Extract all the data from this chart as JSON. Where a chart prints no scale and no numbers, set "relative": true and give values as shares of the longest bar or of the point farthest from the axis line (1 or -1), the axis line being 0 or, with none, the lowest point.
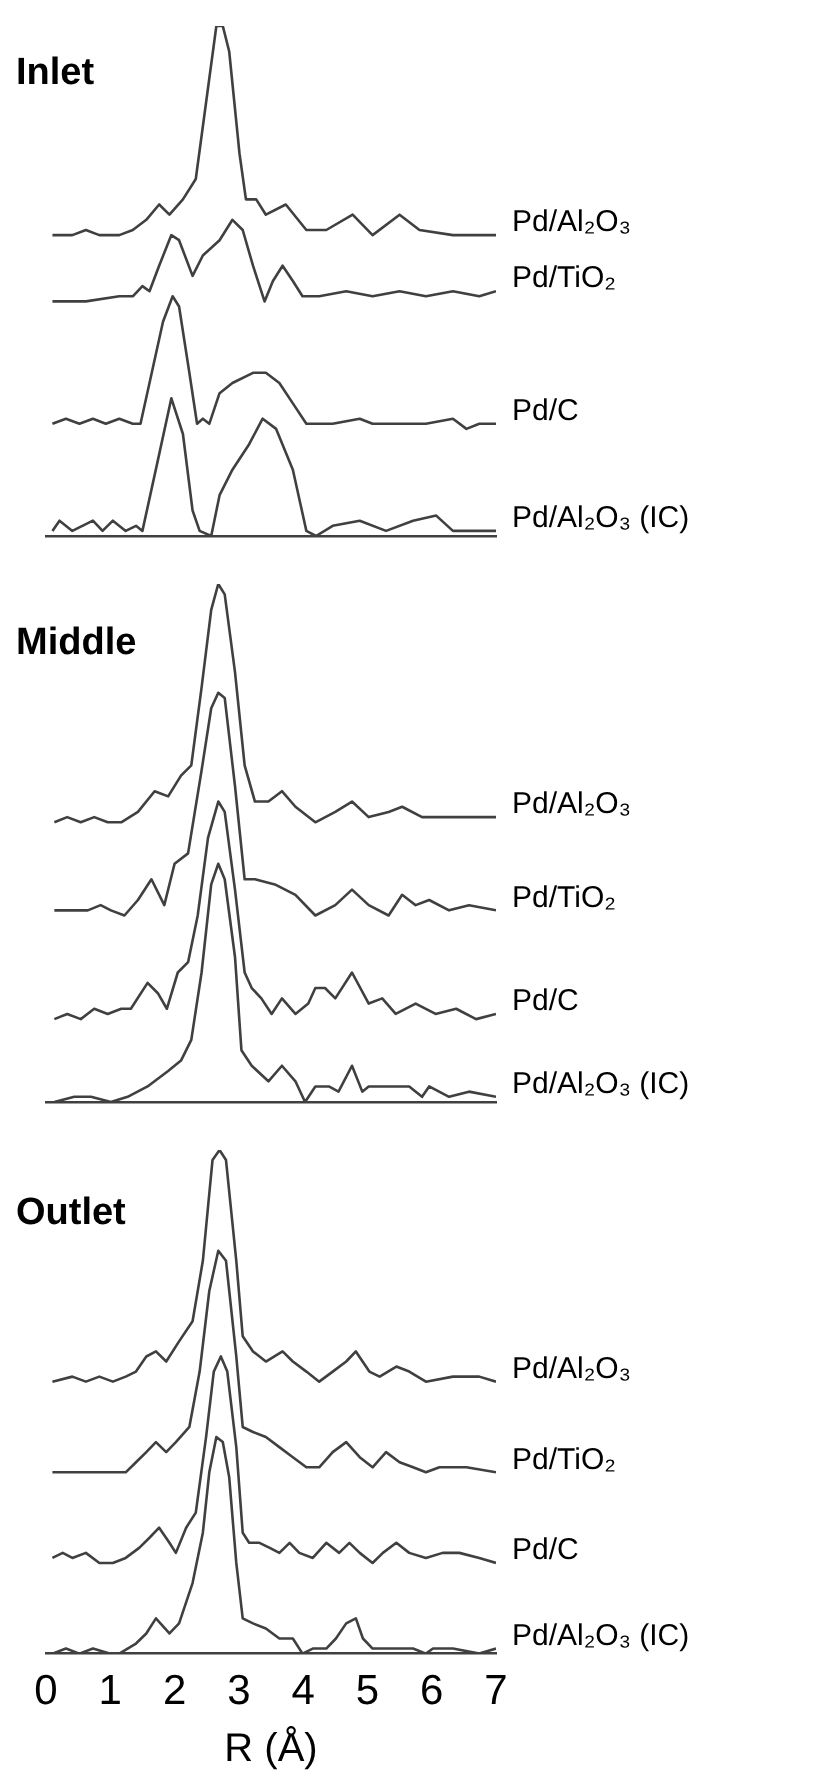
{
  "chart_data": [
    {
      "type": "line",
      "title": "Inlet",
      "relative": true,
      "xlim": [
        0,
        7
      ],
      "xticks": [
        0,
        1,
        2,
        3,
        4,
        5,
        6,
        7
      ],
      "tick_labels": false,
      "legend": false,
      "marker": "none",
      "line_style": "solid",
      "series": [
        {
          "name": "Pd/Al₂O₃",
          "color": "#404040",
          "x": [
            0.1,
            0.41,
            0.62,
            0.83,
            1.04,
            1.14,
            1.35,
            1.56,
            1.76,
            1.92,
            2.13,
            2.33,
            2.49,
            2.65,
            2.75,
            2.85,
            3.01,
            3.11,
            3.27,
            3.42,
            3.73,
            4.05,
            4.36,
            4.77,
            5.08,
            5.5,
            5.81,
            6.33,
            7.0
          ],
          "values": [
            0.59,
            0.59,
            0.6,
            0.59,
            0.59,
            0.59,
            0.6,
            0.62,
            0.65,
            0.63,
            0.66,
            0.7,
            0.85,
            1.0,
            1.0,
            0.95,
            0.75,
            0.66,
            0.66,
            0.63,
            0.65,
            0.6,
            0.6,
            0.63,
            0.59,
            0.63,
            0.6,
            0.59,
            0.59
          ]
        },
        {
          "name": "Pd/TiO₂",
          "color": "#404040",
          "x": [
            0.1,
            0.62,
            1.14,
            1.35,
            1.5,
            1.61,
            1.76,
            1.95,
            2.07,
            2.28,
            2.44,
            2.7,
            2.9,
            3.06,
            3.22,
            3.4,
            3.53,
            3.68,
            3.84,
            3.99,
            4.25,
            4.67,
            5.08,
            5.5,
            5.91,
            6.33,
            6.74,
            7.0
          ],
          "values": [
            0.46,
            0.46,
            0.47,
            0.47,
            0.49,
            0.48,
            0.53,
            0.59,
            0.58,
            0.51,
            0.55,
            0.58,
            0.62,
            0.6,
            0.53,
            0.46,
            0.5,
            0.53,
            0.5,
            0.47,
            0.47,
            0.48,
            0.47,
            0.48,
            0.47,
            0.48,
            0.47,
            0.48
          ]
        },
        {
          "name": "Pd/C",
          "color": "#404040",
          "x": [
            0.1,
            0.31,
            0.52,
            0.73,
            0.93,
            1.14,
            1.35,
            1.47,
            1.61,
            1.82,
            1.97,
            2.07,
            2.23,
            2.35,
            2.44,
            2.54,
            2.7,
            2.9,
            3.22,
            3.42,
            3.63,
            3.84,
            4.05,
            4.46,
            4.88,
            5.08,
            5.5,
            5.91,
            6.33,
            6.54,
            6.74,
            7.0
          ],
          "values": [
            0.22,
            0.23,
            0.22,
            0.23,
            0.22,
            0.23,
            0.22,
            0.22,
            0.3,
            0.42,
            0.47,
            0.45,
            0.32,
            0.22,
            0.23,
            0.22,
            0.28,
            0.3,
            0.32,
            0.32,
            0.3,
            0.26,
            0.22,
            0.22,
            0.23,
            0.22,
            0.22,
            0.22,
            0.23,
            0.21,
            0.22,
            0.22
          ]
        },
        {
          "name": "Pd/Al₂O₃ (IC)",
          "color": "#404040",
          "x": [
            0.1,
            0.21,
            0.41,
            0.73,
            0.88,
            1.04,
            1.24,
            1.4,
            1.5,
            1.76,
            1.95,
            2.13,
            2.28,
            2.39,
            2.57,
            2.7,
            2.9,
            3.16,
            3.37,
            3.58,
            3.84,
            4.05,
            4.2,
            4.46,
            4.88,
            5.29,
            5.71,
            6.07,
            6.33,
            6.74,
            7.0
          ],
          "values": [
            0.01,
            0.03,
            0.01,
            0.03,
            0.01,
            0.03,
            0.01,
            0.02,
            0.01,
            0.16,
            0.27,
            0.2,
            0.05,
            0.01,
            0.0,
            0.08,
            0.13,
            0.18,
            0.23,
            0.21,
            0.13,
            0.01,
            0.0,
            0.02,
            0.03,
            0.01,
            0.03,
            0.04,
            0.01,
            0.01,
            0.01
          ]
        }
      ]
    },
    {
      "type": "line",
      "title": "Middle",
      "relative": true,
      "xlim": [
        0,
        7
      ],
      "xticks": [
        0,
        1,
        2,
        3,
        4,
        5,
        6,
        7
      ],
      "tick_labels": false,
      "legend": false,
      "marker": "none",
      "line_style": "solid",
      "series": [
        {
          "name": "Pd/Al₂O₃",
          "color": "#404040",
          "x": [
            0.13,
            0.33,
            0.54,
            0.75,
            0.96,
            1.17,
            1.43,
            1.69,
            1.9,
            2.1,
            2.26,
            2.42,
            2.57,
            2.68,
            2.78,
            2.94,
            3.09,
            3.25,
            3.46,
            3.67,
            3.88,
            4.19,
            4.5,
            4.76,
            5.02,
            5.33,
            5.54,
            5.85,
            6.38,
            7.0
          ],
          "values": [
            0.54,
            0.55,
            0.54,
            0.55,
            0.54,
            0.54,
            0.56,
            0.6,
            0.59,
            0.63,
            0.65,
            0.8,
            0.95,
            1.0,
            0.98,
            0.83,
            0.65,
            0.58,
            0.58,
            0.6,
            0.57,
            0.54,
            0.56,
            0.58,
            0.55,
            0.56,
            0.57,
            0.55,
            0.55,
            0.55
          ]
        },
        {
          "name": "Pd/TiO₂",
          "color": "#404040",
          "x": [
            0.13,
            0.65,
            0.85,
            1.01,
            1.22,
            1.43,
            1.64,
            1.84,
            2.0,
            2.21,
            2.42,
            2.57,
            2.68,
            2.78,
            2.94,
            3.09,
            3.25,
            3.56,
            3.88,
            4.19,
            4.5,
            4.76,
            5.02,
            5.33,
            5.54,
            5.75,
            5.96,
            6.27,
            6.58,
            7.0
          ],
          "values": [
            0.37,
            0.37,
            0.38,
            0.37,
            0.36,
            0.39,
            0.43,
            0.38,
            0.46,
            0.48,
            0.64,
            0.76,
            0.79,
            0.78,
            0.61,
            0.43,
            0.43,
            0.42,
            0.4,
            0.36,
            0.38,
            0.41,
            0.38,
            0.36,
            0.4,
            0.38,
            0.39,
            0.37,
            0.38,
            0.37
          ]
        },
        {
          "name": "Pd/C",
          "color": "#404040",
          "x": [
            0.13,
            0.33,
            0.54,
            0.75,
            0.96,
            1.17,
            1.32,
            1.58,
            1.74,
            1.88,
            2.05,
            2.21,
            2.36,
            2.52,
            2.68,
            2.78,
            2.94,
            3.09,
            3.2,
            3.35,
            3.51,
            3.67,
            3.88,
            4.08,
            4.19,
            4.34,
            4.5,
            4.76,
            5.02,
            5.23,
            5.44,
            5.75,
            6.06,
            6.38,
            6.69,
            7.0
          ],
          "values": [
            0.16,
            0.17,
            0.16,
            0.18,
            0.17,
            0.18,
            0.18,
            0.23,
            0.21,
            0.18,
            0.25,
            0.27,
            0.36,
            0.51,
            0.58,
            0.56,
            0.41,
            0.25,
            0.22,
            0.2,
            0.17,
            0.2,
            0.17,
            0.19,
            0.22,
            0.22,
            0.2,
            0.25,
            0.19,
            0.2,
            0.17,
            0.19,
            0.17,
            0.18,
            0.16,
            0.17
          ]
        },
        {
          "name": "Pd/Al₂O₃ (IC)",
          "color": "#404040",
          "x": [
            0.13,
            0.44,
            0.7,
            1.01,
            1.27,
            1.58,
            1.9,
            2.1,
            2.26,
            2.42,
            2.57,
            2.68,
            2.78,
            2.94,
            3.04,
            3.2,
            3.46,
            3.67,
            3.88,
            4.03,
            4.19,
            4.4,
            4.55,
            4.76,
            4.92,
            5.02,
            5.33,
            5.65,
            5.85,
            5.96,
            6.27,
            6.58,
            7.0
          ],
          "values": [
            0.0,
            0.01,
            0.01,
            0.0,
            0.01,
            0.03,
            0.06,
            0.08,
            0.12,
            0.25,
            0.42,
            0.46,
            0.43,
            0.28,
            0.1,
            0.07,
            0.04,
            0.07,
            0.04,
            0.0,
            0.03,
            0.03,
            0.02,
            0.07,
            0.02,
            0.03,
            0.03,
            0.03,
            0.01,
            0.03,
            0.01,
            0.02,
            0.01
          ]
        }
      ]
    },
    {
      "type": "line",
      "title": "Outlet",
      "xlabel": "R (Å)",
      "relative": true,
      "xlim": [
        0,
        7
      ],
      "xticks": [
        0,
        1,
        2,
        3,
        4,
        5,
        6,
        7
      ],
      "tick_labels": "x",
      "legend": false,
      "marker": "none",
      "line_style": "solid",
      "series": [
        {
          "name": "Pd/Al₂O₃",
          "color": "#404040",
          "x": [
            0.1,
            0.41,
            0.62,
            0.83,
            1.04,
            1.24,
            1.4,
            1.56,
            1.71,
            1.87,
            2.07,
            2.28,
            2.44,
            2.59,
            2.7,
            2.8,
            2.96,
            3.06,
            3.22,
            3.42,
            3.68,
            3.84,
            4.05,
            4.25,
            4.46,
            4.67,
            4.82,
            5.03,
            5.19,
            5.45,
            5.65,
            5.91,
            6.33,
            6.74,
            7.0
          ],
          "values": [
            0.54,
            0.55,
            0.54,
            0.55,
            0.54,
            0.55,
            0.56,
            0.59,
            0.6,
            0.58,
            0.62,
            0.66,
            0.78,
            0.98,
            1.0,
            0.98,
            0.78,
            0.63,
            0.6,
            0.58,
            0.6,
            0.58,
            0.56,
            0.54,
            0.56,
            0.58,
            0.6,
            0.56,
            0.55,
            0.57,
            0.56,
            0.54,
            0.55,
            0.55,
            0.54
          ]
        },
        {
          "name": "Pd/TiO₂",
          "color": "#404040",
          "x": [
            0.1,
            0.52,
            0.83,
            1.04,
            1.24,
            1.4,
            1.56,
            1.71,
            1.87,
            2.02,
            2.23,
            2.39,
            2.54,
            2.68,
            2.8,
            2.96,
            3.06,
            3.22,
            3.42,
            3.63,
            3.84,
            4.05,
            4.25,
            4.46,
            4.67,
            4.88,
            5.08,
            5.29,
            5.5,
            5.71,
            5.91,
            6.12,
            6.54,
            7.0
          ],
          "values": [
            0.36,
            0.36,
            0.36,
            0.36,
            0.36,
            0.38,
            0.4,
            0.42,
            0.4,
            0.42,
            0.45,
            0.56,
            0.72,
            0.8,
            0.78,
            0.59,
            0.45,
            0.44,
            0.43,
            0.41,
            0.39,
            0.37,
            0.37,
            0.4,
            0.42,
            0.39,
            0.37,
            0.4,
            0.38,
            0.37,
            0.36,
            0.37,
            0.37,
            0.36
          ]
        },
        {
          "name": "Pd/C",
          "color": "#404040",
          "x": [
            0.1,
            0.26,
            0.41,
            0.62,
            0.83,
            1.04,
            1.24,
            1.45,
            1.61,
            1.76,
            1.92,
            2.02,
            2.18,
            2.33,
            2.49,
            2.61,
            2.72,
            2.82,
            2.96,
            3.06,
            3.16,
            3.32,
            3.48,
            3.63,
            3.79,
            3.94,
            4.15,
            4.36,
            4.56,
            4.72,
            4.88,
            5.08,
            5.24,
            5.45,
            5.65,
            5.91,
            6.17,
            6.43,
            6.74,
            7.0
          ],
          "values": [
            0.19,
            0.2,
            0.19,
            0.2,
            0.18,
            0.18,
            0.19,
            0.21,
            0.23,
            0.25,
            0.22,
            0.2,
            0.25,
            0.28,
            0.43,
            0.56,
            0.59,
            0.56,
            0.41,
            0.24,
            0.22,
            0.22,
            0.21,
            0.2,
            0.22,
            0.2,
            0.19,
            0.22,
            0.2,
            0.22,
            0.2,
            0.18,
            0.2,
            0.22,
            0.2,
            0.19,
            0.2,
            0.2,
            0.19,
            0.18
          ]
        },
        {
          "name": "Pd/Al₂O₃ (IC)",
          "color": "#404040",
          "x": [
            0.1,
            0.31,
            0.52,
            0.73,
            0.99,
            1.14,
            1.4,
            1.56,
            1.71,
            1.92,
            2.07,
            2.28,
            2.44,
            2.54,
            2.65,
            2.75,
            2.85,
            2.96,
            3.06,
            3.22,
            3.42,
            3.63,
            3.84,
            3.99,
            4.15,
            4.36,
            4.51,
            4.67,
            4.82,
            4.93,
            5.08,
            5.29,
            5.5,
            5.71,
            5.91,
            6.02,
            6.33,
            6.74,
            7.0
          ],
          "values": [
            0.0,
            0.01,
            0.0,
            0.01,
            0.0,
            0.0,
            0.02,
            0.04,
            0.07,
            0.04,
            0.06,
            0.14,
            0.24,
            0.36,
            0.43,
            0.42,
            0.35,
            0.18,
            0.07,
            0.06,
            0.05,
            0.03,
            0.03,
            0.0,
            0.01,
            0.01,
            0.03,
            0.06,
            0.07,
            0.03,
            0.01,
            0.01,
            0.01,
            0.01,
            0.0,
            0.01,
            0.01,
            0.0,
            0.01
          ]
        }
      ]
    }
  ]
}
